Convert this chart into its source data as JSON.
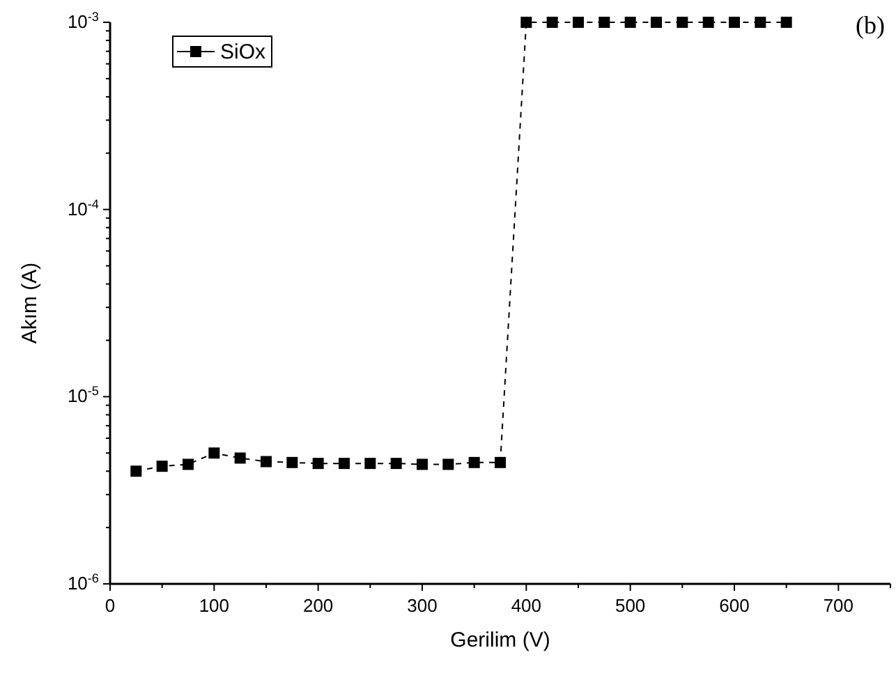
{
  "chart_data": {
    "type": "line",
    "xlabel": "Gerilim (V)",
    "ylabel": "Akım (A)",
    "annotations": [
      "(b)"
    ],
    "x": [
      25,
      50,
      75,
      100,
      125,
      150,
      175,
      200,
      225,
      250,
      275,
      300,
      325,
      350,
      375,
      400,
      425,
      450,
      475,
      500,
      525,
      550,
      575,
      600,
      625,
      650
    ],
    "series": [
      {
        "name": "SiOx",
        "color": "#000000",
        "values": [
          4e-06,
          4.25e-06,
          4.35e-06,
          5e-06,
          4.7e-06,
          4.5e-06,
          4.45e-06,
          4.4e-06,
          4.4e-06,
          4.4e-06,
          4.4e-06,
          4.35e-06,
          4.35e-06,
          4.45e-06,
          4.45e-06,
          0.001,
          0.001,
          0.001,
          0.001,
          0.001,
          0.001,
          0.001,
          0.001,
          0.001,
          0.001,
          0.001
        ]
      }
    ],
    "xlim": [
      0,
      750
    ],
    "xticks": [
      0,
      {
        "value": 50,
        "label": null
      },
      100,
      {
        "value": 150,
        "label": null
      },
      200,
      {
        "value": 250,
        "label": null
      },
      300,
      {
        "value": 350,
        "label": null
      },
      400,
      {
        "value": 450,
        "label": null
      },
      500,
      {
        "value": 550,
        "label": null
      },
      600,
      {
        "value": 650,
        "label": null
      },
      700,
      {
        "value": 750,
        "label": null
      }
    ],
    "ylim": [
      1e-06,
      0.001
    ],
    "yticks": [
      {
        "value": 1e-06,
        "label": "10$^{-6}$"
      },
      {
        "value": 2e-06,
        "label": null
      },
      {
        "value": 3e-06,
        "label": null
      },
      {
        "value": 4e-06,
        "label": null
      },
      {
        "value": 5e-06,
        "label": null
      },
      {
        "value": 6e-06,
        "label": null
      },
      {
        "value": 7e-06,
        "label": null
      },
      {
        "value": 8e-06,
        "label": null
      },
      {
        "value": 9e-06,
        "label": null
      },
      {
        "value": 1e-05,
        "label": "10$^{-5}$"
      },
      {
        "value": 2e-05,
        "label": null
      },
      {
        "value": 3e-05,
        "label": null
      },
      {
        "value": 4e-05,
        "label": null
      },
      {
        "value": 5e-05,
        "label": null
      },
      {
        "value": 6e-05,
        "label": null
      },
      {
        "value": 7e-05,
        "label": null
      },
      {
        "value": 8e-05,
        "label": null
      },
      {
        "value": 9e-05,
        "label": null
      },
      {
        "value": 0.0001,
        "label": "10$^{-4}$"
      },
      {
        "value": 0.0002,
        "label": null
      },
      {
        "value": 0.0003,
        "label": null
      },
      {
        "value": 0.0004,
        "label": null
      },
      {
        "value": 0.0005,
        "label": null
      },
      {
        "value": 0.0006,
        "label": null
      },
      {
        "value": 0.0007,
        "label": null
      },
      {
        "value": 0.0008,
        "label": null
      },
      {
        "value": 0.0009,
        "label": null
      },
      {
        "value": 0.001,
        "label": "10$^{-3}$"
      }
    ],
    "log": "y",
    "grid": false,
    "legend": "top left",
    "marker": "square",
    "line_style": "dashed"
  }
}
